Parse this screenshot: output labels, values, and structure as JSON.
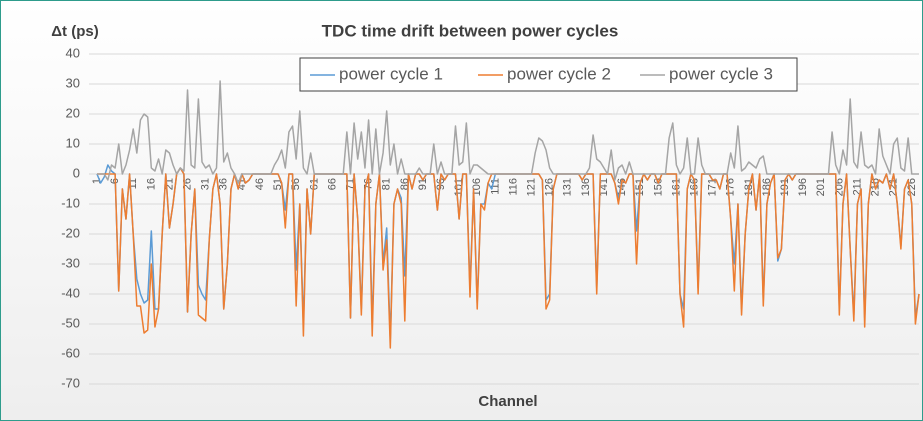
{
  "chart_data": {
    "type": "line",
    "title": "TDC time drift between power cycles",
    "y_label": "Δt (ps)",
    "x_label": "Channel",
    "legend": "top",
    "grid": true,
    "ylim": [
      -70,
      40
    ],
    "yticks": [
      -70,
      -60,
      -50,
      -40,
      -30,
      -20,
      -10,
      0,
      10,
      20,
      30,
      40
    ],
    "categories": [
      1,
      null,
      null,
      null,
      null,
      6,
      null,
      null,
      null,
      null,
      11,
      null,
      null,
      null,
      null,
      16,
      null,
      null,
      null,
      null,
      21,
      null,
      null,
      null,
      null,
      26,
      null,
      null,
      null,
      null,
      31,
      null,
      null,
      null,
      null,
      36,
      null,
      null,
      null,
      null,
      41,
      null,
      null,
      null,
      null,
      46,
      null,
      null,
      null,
      null,
      51,
      null,
      null,
      null,
      null,
      56,
      null,
      null,
      null,
      null,
      61,
      null,
      null,
      null,
      null,
      66,
      null,
      null,
      null,
      null,
      71,
      null,
      null,
      null,
      null,
      76,
      null,
      null,
      null,
      null,
      81,
      null,
      null,
      null,
      null,
      86,
      null,
      null,
      null,
      null,
      91,
      null,
      null,
      null,
      null,
      96,
      null,
      null,
      null,
      null,
      101,
      null,
      null,
      null,
      null,
      106,
      null,
      null,
      null,
      null,
      111,
      null,
      null,
      null,
      null,
      116,
      null,
      null,
      null,
      null,
      121,
      null,
      null,
      null,
      null,
      126,
      null,
      null,
      null,
      null,
      131,
      null,
      null,
      null,
      null,
      136,
      null,
      null,
      null,
      null,
      141,
      null,
      null,
      null,
      null,
      146,
      null,
      null,
      null,
      null,
      151,
      null,
      null,
      null,
      null,
      156,
      null,
      null,
      null,
      null,
      161,
      null,
      null,
      null,
      null,
      166,
      null,
      null,
      null,
      null,
      171,
      null,
      null,
      null,
      null,
      176,
      null,
      null,
      null,
      null,
      181,
      null,
      null,
      null,
      null,
      186,
      null,
      null,
      null,
      null,
      191,
      null,
      null,
      null,
      null,
      196,
      null,
      null,
      null,
      null,
      201,
      null,
      null,
      null,
      null,
      206,
      null,
      null,
      null,
      null,
      211,
      null,
      null,
      null,
      null,
      216,
      null,
      null,
      null,
      null,
      221,
      null,
      null,
      null,
      null,
      226,
      null,
      null
    ],
    "series": [
      {
        "name": "power cycle 1",
        "color": "#5b9bd5",
        "values": [
          0,
          -3,
          -1,
          3,
          1,
          0,
          -39,
          -5,
          -15,
          0,
          -20,
          -35,
          -40,
          -43,
          -42,
          -19,
          -45,
          -45,
          -20,
          0,
          -18,
          -10,
          0,
          2,
          0,
          -46,
          -20,
          -5,
          -37,
          -40,
          -42,
          -22,
          -5,
          0,
          -10,
          -45,
          -30,
          -5,
          0,
          -5,
          0,
          -3,
          -2,
          0,
          0,
          0,
          0,
          0,
          0,
          0,
          0,
          -3,
          -12,
          0,
          0,
          -32,
          -10,
          -50,
          -5,
          -20,
          0,
          0,
          0,
          0,
          0,
          0,
          0,
          0,
          0,
          0,
          -48,
          0,
          -15,
          -45,
          -5,
          0,
          -50,
          -10,
          0,
          -30,
          -18,
          -55,
          -10,
          -5,
          -8,
          -34,
          0,
          -5,
          0,
          0,
          -2,
          0,
          0,
          0,
          -12,
          0,
          -2,
          0,
          0,
          0,
          -15,
          0,
          0,
          -38,
          -5,
          -43,
          -10,
          -10,
          -3,
          -5,
          0,
          0,
          0,
          0,
          0,
          0,
          0,
          0,
          0,
          0,
          0,
          0,
          0,
          -2,
          -42,
          -40,
          -5,
          0,
          0,
          0,
          0,
          0,
          0,
          0,
          -2,
          0,
          0,
          0,
          -38,
          0,
          0,
          0,
          0,
          -3,
          -8,
          -2,
          -3,
          0,
          0,
          -19,
          -3,
          0,
          -2,
          0,
          0,
          -3,
          0,
          0,
          0,
          0,
          0,
          -40,
          -45,
          -5,
          0,
          -2,
          -38,
          0,
          0,
          0,
          -2,
          -2,
          -5,
          0,
          0,
          -15,
          -30,
          -10,
          -45,
          -20,
          -5,
          0,
          -12,
          0,
          -42,
          -10,
          -3,
          0,
          -29,
          -25,
          -2,
          0,
          -2,
          0,
          0,
          0,
          0,
          0,
          0,
          0,
          0,
          0,
          0,
          0,
          0,
          -45,
          -10,
          0,
          -25,
          -47,
          -10,
          -5,
          -48,
          -10,
          0,
          -5,
          -2,
          -3,
          0,
          -5,
          0,
          -10,
          -24,
          -5,
          -2,
          -10,
          -48,
          -40
        ]
      },
      {
        "name": "power cycle 2",
        "color": "#ed7d31",
        "values": [
          0,
          0,
          0,
          0,
          0,
          0,
          -39,
          -5,
          -15,
          0,
          -20,
          -44,
          -44,
          -53,
          -52,
          -30,
          -51,
          -45,
          -20,
          0,
          -18,
          -10,
          0,
          2,
          0,
          -46,
          -20,
          -5,
          -47,
          -48,
          -49,
          -22,
          -5,
          0,
          -10,
          -45,
          -30,
          -5,
          0,
          -5,
          0,
          -3,
          -2,
          0,
          0,
          0,
          0,
          0,
          0,
          0,
          0,
          -3,
          -18,
          0,
          0,
          -44,
          -10,
          -54,
          -5,
          -20,
          0,
          0,
          0,
          0,
          0,
          0,
          0,
          0,
          0,
          0,
          -48,
          0,
          -15,
          -47,
          -5,
          0,
          -54,
          -10,
          0,
          -32,
          -22,
          -58,
          -10,
          -5,
          -10,
          -49,
          0,
          -5,
          0,
          0,
          -2,
          0,
          0,
          0,
          -12,
          0,
          -2,
          0,
          0,
          0,
          -15,
          0,
          0,
          -41,
          -5,
          -45,
          -10,
          -12,
          -3,
          0,
          0,
          0,
          0,
          0,
          0,
          0,
          0,
          0,
          0,
          0,
          0,
          0,
          0,
          -2,
          -45,
          -42,
          -5,
          0,
          0,
          0,
          0,
          0,
          0,
          0,
          -2,
          0,
          0,
          0,
          -40,
          0,
          0,
          0,
          0,
          -3,
          -10,
          -2,
          -3,
          0,
          0,
          -30,
          -3,
          0,
          -2,
          0,
          0,
          -3,
          0,
          0,
          0,
          0,
          0,
          -40,
          -51,
          -5,
          0,
          -2,
          -40,
          0,
          0,
          0,
          -2,
          -2,
          -5,
          0,
          0,
          -15,
          -39,
          -10,
          -47,
          -20,
          -5,
          0,
          -12,
          0,
          -44,
          -10,
          -3,
          0,
          -28,
          -25,
          -2,
          0,
          -2,
          0,
          0,
          0,
          0,
          0,
          0,
          0,
          0,
          0,
          0,
          0,
          0,
          -47,
          -10,
          0,
          -25,
          -49,
          -10,
          -5,
          -51,
          -10,
          0,
          -5,
          -2,
          -3,
          0,
          -5,
          0,
          -10,
          -25,
          -5,
          -2,
          -10,
          -50,
          -40
        ]
      },
      {
        "name": "power cycle 3",
        "color": "#a5a5a5",
        "values": [
          0,
          0,
          0,
          -2,
          3,
          2,
          10,
          0,
          3,
          8,
          15,
          7,
          18,
          20,
          19,
          2,
          1,
          5,
          0,
          8,
          7,
          3,
          0,
          2,
          1,
          28,
          3,
          2,
          25,
          4,
          2,
          3,
          0,
          2,
          31,
          4,
          7,
          2,
          0,
          -3,
          0,
          0,
          0,
          0,
          0,
          0,
          0,
          0,
          0,
          3,
          5,
          8,
          2,
          14,
          16,
          5,
          21,
          2,
          0,
          7,
          0,
          0,
          0,
          0,
          0,
          0,
          0,
          0,
          0,
          14,
          0,
          17,
          5,
          14,
          2,
          18,
          0,
          15,
          0,
          7,
          21,
          3,
          10,
          0,
          5,
          0,
          0,
          0,
          0,
          2,
          0,
          0,
          0,
          10,
          0,
          4,
          0,
          0,
          0,
          16,
          3,
          4,
          17,
          0,
          3,
          3,
          2,
          1,
          0,
          0,
          0,
          0,
          0,
          0,
          0,
          0,
          0,
          0,
          0,
          0,
          0,
          7,
          12,
          11,
          8,
          2,
          0,
          0,
          0,
          0,
          0,
          0,
          0,
          0,
          0,
          0,
          2,
          13,
          5,
          4,
          2,
          0,
          8,
          -2,
          2,
          3,
          0,
          4,
          0,
          0,
          0,
          0,
          0,
          0,
          0,
          0,
          0,
          0,
          12,
          17,
          3,
          0,
          2,
          12,
          0,
          0,
          12,
          3,
          0,
          0,
          0,
          0,
          0,
          0,
          0,
          7,
          2,
          16,
          1,
          2,
          4,
          3,
          2,
          5,
          6,
          0,
          0,
          0,
          0,
          0,
          0,
          0,
          0,
          0,
          0,
          0,
          0,
          0,
          0,
          0,
          0,
          0,
          0,
          14,
          3,
          0,
          8,
          3,
          25,
          4,
          2,
          14,
          3,
          2,
          3,
          0,
          15,
          6,
          3,
          0,
          10,
          12,
          2,
          1,
          12,
          0,
          0,
          0
        ]
      }
    ]
  }
}
